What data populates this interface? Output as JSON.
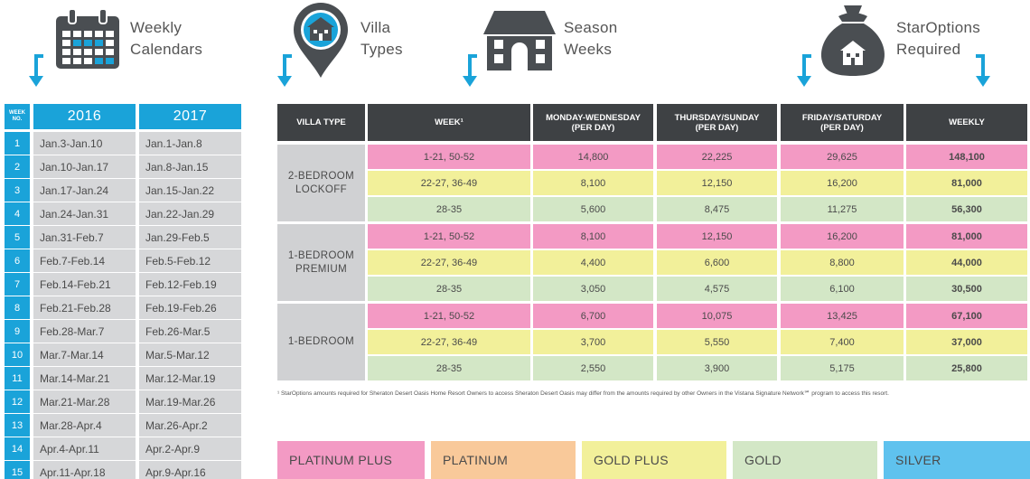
{
  "headers": {
    "calendars": [
      "Weekly",
      "Calendars"
    ],
    "villa_types": [
      "Villa",
      "Types"
    ],
    "season_weeks": [
      "Season",
      "Weeks"
    ],
    "staroptions": [
      "StarOptions",
      "Required"
    ]
  },
  "calendar": {
    "week_no_label": "WEEK NO.",
    "years": [
      "2016",
      "2017"
    ],
    "rows": [
      {
        "wk": "1",
        "y2016": "Jan.3-Jan.10",
        "y2017": "Jan.1-Jan.8"
      },
      {
        "wk": "2",
        "y2016": "Jan.10-Jan.17",
        "y2017": "Jan.8-Jan.15"
      },
      {
        "wk": "3",
        "y2016": "Jan.17-Jan.24",
        "y2017": "Jan.15-Jan.22"
      },
      {
        "wk": "4",
        "y2016": "Jan.24-Jan.31",
        "y2017": "Jan.22-Jan.29"
      },
      {
        "wk": "5",
        "y2016": "Jan.31-Feb.7",
        "y2017": "Jan.29-Feb.5"
      },
      {
        "wk": "6",
        "y2016": "Feb.7-Feb.14",
        "y2017": "Feb.5-Feb.12"
      },
      {
        "wk": "7",
        "y2016": "Feb.14-Feb.21",
        "y2017": "Feb.12-Feb.19"
      },
      {
        "wk": "8",
        "y2016": "Feb.21-Feb.28",
        "y2017": "Feb.19-Feb.26"
      },
      {
        "wk": "9",
        "y2016": "Feb.28-Mar.7",
        "y2017": "Feb.26-Mar.5"
      },
      {
        "wk": "10",
        "y2016": "Mar.7-Mar.14",
        "y2017": "Mar.5-Mar.12"
      },
      {
        "wk": "11",
        "y2016": "Mar.14-Mar.21",
        "y2017": "Mar.12-Mar.19"
      },
      {
        "wk": "12",
        "y2016": "Mar.21-Mar.28",
        "y2017": "Mar.19-Mar.26"
      },
      {
        "wk": "13",
        "y2016": "Mar.28-Apr.4",
        "y2017": "Mar.26-Apr.2"
      },
      {
        "wk": "14",
        "y2016": "Apr.4-Apr.11",
        "y2017": "Apr.2-Apr.9"
      },
      {
        "wk": "15",
        "y2016": "Apr.11-Apr.18",
        "y2017": "Apr.9-Apr.16"
      }
    ]
  },
  "table": {
    "columns": [
      [
        "VILLA TYPE"
      ],
      [
        "WEEK¹"
      ],
      [
        "MONDAY-WEDNESDAY",
        "(PER DAY)"
      ],
      [
        "THURSDAY/SUNDAY",
        "(PER DAY)"
      ],
      [
        "FRIDAY/SATURDAY",
        "(PER DAY)"
      ],
      [
        "WEEKLY"
      ]
    ],
    "groups": [
      {
        "villa_type": [
          "2-BEDROOM",
          "LOCKOFF"
        ],
        "rows": [
          {
            "color": "pink",
            "weeks": "1-21, 50-52",
            "mon_wed": "14,800",
            "thu_sun": "22,225",
            "fri_sat": "29,625",
            "weekly": "148,100"
          },
          {
            "color": "yellow",
            "weeks": "22-27, 36-49",
            "mon_wed": "8,100",
            "thu_sun": "12,150",
            "fri_sat": "16,200",
            "weekly": "81,000"
          },
          {
            "color": "green",
            "weeks": "28-35",
            "mon_wed": "5,600",
            "thu_sun": "8,475",
            "fri_sat": "11,275",
            "weekly": "56,300"
          }
        ]
      },
      {
        "villa_type": [
          "1-BEDROOM",
          "PREMIUM"
        ],
        "rows": [
          {
            "color": "pink",
            "weeks": "1-21, 50-52",
            "mon_wed": "8,100",
            "thu_sun": "12,150",
            "fri_sat": "16,200",
            "weekly": "81,000"
          },
          {
            "color": "yellow",
            "weeks": "22-27, 36-49",
            "mon_wed": "4,400",
            "thu_sun": "6,600",
            "fri_sat": "8,800",
            "weekly": "44,000"
          },
          {
            "color": "green",
            "weeks": "28-35",
            "mon_wed": "3,050",
            "thu_sun": "4,575",
            "fri_sat": "6,100",
            "weekly": "30,500"
          }
        ]
      },
      {
        "villa_type": [
          "1-BEDROOM"
        ],
        "rows": [
          {
            "color": "pink",
            "weeks": "1-21, 50-52",
            "mon_wed": "6,700",
            "thu_sun": "10,075",
            "fri_sat": "13,425",
            "weekly": "67,100"
          },
          {
            "color": "yellow",
            "weeks": "22-27, 36-49",
            "mon_wed": "3,700",
            "thu_sun": "5,550",
            "fri_sat": "7,400",
            "weekly": "37,000"
          },
          {
            "color": "green",
            "weeks": "28-35",
            "mon_wed": "2,550",
            "thu_sun": "3,900",
            "fri_sat": "5,175",
            "weekly": "25,800"
          }
        ]
      }
    ]
  },
  "footnote": "¹ StarOptions amounts required for Sheraton Desert Oasis Home Resort Owners to access Sheraton Desert Oasis may differ from the amounts required by other Owners in the Vistana Signature Network℠ program to access this resort.",
  "legend": [
    {
      "label": "PLATINUM PLUS",
      "color": "#f39ac4"
    },
    {
      "label": "PLATINUM",
      "color": "#f9c99a"
    },
    {
      "label": "GOLD PLUS",
      "color": "#f2f09a"
    },
    {
      "label": "GOLD",
      "color": "#d3e7c6"
    },
    {
      "label": "SILVER",
      "color": "#5fc2ee"
    }
  ],
  "colors": {
    "accent_blue": "#1aa3d9",
    "header_dark": "#3e4144",
    "icon_gray": "#4a4e52"
  }
}
